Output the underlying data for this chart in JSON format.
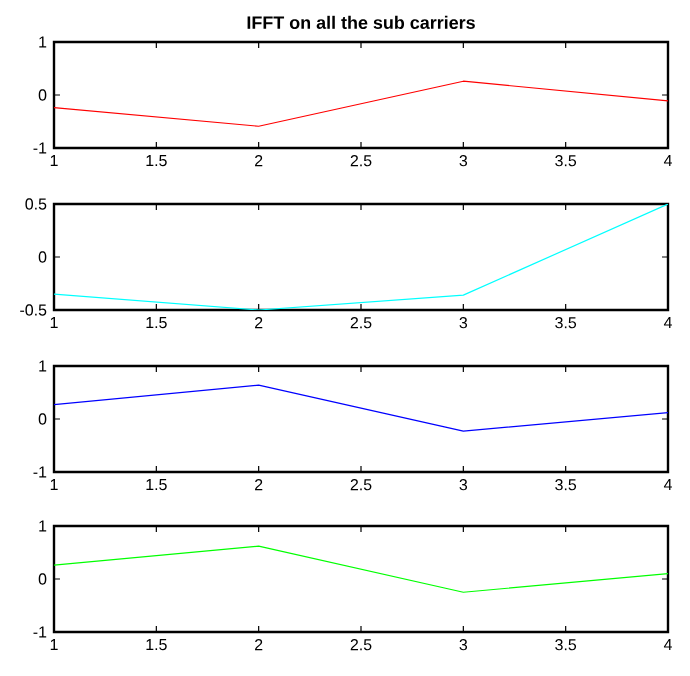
{
  "chart_data": [
    {
      "type": "line",
      "title": "IFFT on all the sub carriers",
      "x": [
        1,
        2,
        3,
        4
      ],
      "series": [
        {
          "color": "#ff0000",
          "values": [
            -0.24,
            -0.59,
            0.26,
            -0.11
          ]
        }
      ],
      "xlim": [
        1,
        4
      ],
      "ylim": [
        -1,
        1
      ],
      "xticks": [
        1,
        1.5,
        2,
        2.5,
        3,
        3.5,
        4
      ],
      "yticks": [
        -1,
        0,
        1
      ]
    },
    {
      "type": "line",
      "x": [
        1,
        2,
        3,
        4
      ],
      "series": [
        {
          "color": "#00ffff",
          "values": [
            -0.35,
            -0.5,
            -0.36,
            0.5
          ]
        }
      ],
      "xlim": [
        1,
        4
      ],
      "ylim": [
        -0.5,
        0.5
      ],
      "xticks": [
        1,
        1.5,
        2,
        2.5,
        3,
        3.5,
        4
      ],
      "yticks": [
        -0.5,
        0,
        0.5
      ]
    },
    {
      "type": "line",
      "x": [
        1,
        2,
        3,
        4
      ],
      "series": [
        {
          "color": "#0000ff",
          "values": [
            0.27,
            0.64,
            -0.23,
            0.12
          ]
        }
      ],
      "xlim": [
        1,
        4
      ],
      "ylim": [
        -1,
        1
      ],
      "xticks": [
        1,
        1.5,
        2,
        2.5,
        3,
        3.5,
        4
      ],
      "yticks": [
        -1,
        0,
        1
      ]
    },
    {
      "type": "line",
      "x": [
        1,
        2,
        3,
        4
      ],
      "series": [
        {
          "color": "#00ff00",
          "values": [
            0.26,
            0.62,
            -0.25,
            0.1
          ]
        }
      ],
      "xlim": [
        1,
        4
      ],
      "ylim": [
        -1,
        1
      ],
      "xticks": [
        1,
        1.5,
        2,
        2.5,
        3,
        3.5,
        4
      ],
      "yticks": [
        -1,
        0,
        1
      ]
    }
  ]
}
